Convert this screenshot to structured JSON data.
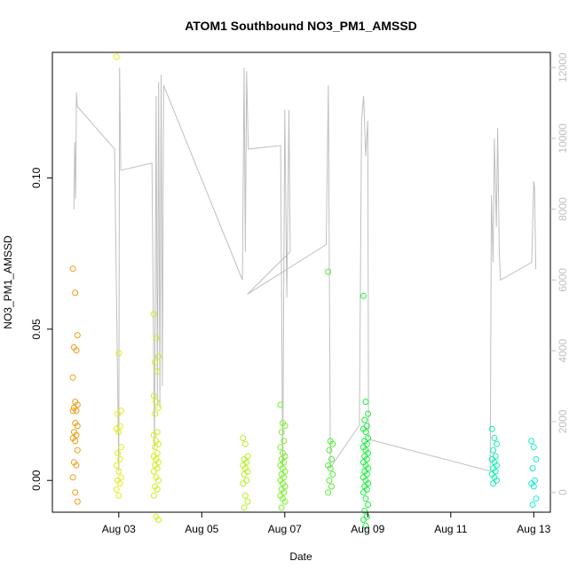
{
  "chart_data": {
    "type": "scatter",
    "title": "ATOM1 Southbound NO3_PM1_AMSSD",
    "xlabel": "Date",
    "ylabel": "NO3_PM1_AMSSD",
    "x_ticks": [
      "Aug 03",
      "Aug 05",
      "Aug 07",
      "Aug 09",
      "Aug 11",
      "Aug 13"
    ],
    "x_tick_days": [
      3,
      5,
      7,
      9,
      11,
      13
    ],
    "xlim": [
      1.4,
      13.4
    ],
    "y_ticks": [
      "0.00",
      "0.05",
      "0.10"
    ],
    "y_tick_values": [
      0.0,
      0.05,
      0.1
    ],
    "ylim": [
      -0.0105,
      0.1415
    ],
    "y2_ticks": [
      "0",
      "2000",
      "4000",
      "6000",
      "8000",
      "10000",
      "12000"
    ],
    "y2_tick_values": [
      0,
      2000,
      4000,
      6000,
      8000,
      10000,
      12000
    ],
    "y2lim": [
      -560,
      12430
    ],
    "series": [
      {
        "name": "NO3_PM1_AMSSD (points)",
        "groups": [
          {
            "day": 1.95,
            "color": "#F39C12",
            "values": [
              0.07,
              0.062,
              0.048,
              0.044,
              0.043,
              0.034,
              0.026,
              0.025,
              0.024,
              0.023,
              0.023,
              0.019,
              0.018,
              0.016,
              0.015,
              0.014,
              0.013,
              0.01,
              0.006,
              0.005,
              0.001,
              -0.004,
              -0.007
            ]
          },
          {
            "day": 3.0,
            "color": "#E2EC1A",
            "values": [
              0.14,
              0.042,
              0.023,
              0.022,
              0.018,
              0.017,
              0.016,
              0.011,
              0.009,
              0.007,
              0.005,
              0.003,
              0.001,
              0.0,
              -0.001,
              -0.003,
              -0.005
            ]
          },
          {
            "day": 3.9,
            "color": "#D2EE1C",
            "values": [
              0.055,
              0.047,
              0.041,
              0.039,
              0.036,
              0.028,
              0.026,
              0.024,
              0.022,
              0.016,
              0.015,
              0.013,
              0.012,
              0.011,
              0.009,
              0.008,
              0.007,
              0.006,
              0.005,
              0.004,
              0.003,
              0.001,
              0.0,
              -0.002,
              -0.003,
              -0.005,
              -0.012,
              -0.013
            ]
          },
          {
            "day": 6.05,
            "color": "#B8EE26",
            "values": [
              0.014,
              0.012,
              0.008,
              0.007,
              0.006,
              0.005,
              0.004,
              0.003,
              0.002,
              0.0,
              -0.001,
              -0.005,
              -0.007,
              -0.009
            ]
          },
          {
            "day": 6.95,
            "color": "#7CEE30",
            "values": [
              0.025,
              0.019,
              0.018,
              0.016,
              0.013,
              0.011,
              0.009,
              0.008,
              0.007,
              0.006,
              0.005,
              0.004,
              0.003,
              0.002,
              0.001,
              0.0,
              -0.001,
              -0.002,
              -0.003,
              -0.004,
              -0.005,
              -0.006,
              -0.007,
              -0.009
            ]
          },
          {
            "day": 8.1,
            "color": "#50EE36",
            "values": [
              0.069,
              0.013,
              0.012,
              0.01,
              0.007,
              0.005,
              0.004,
              0.002,
              0.0,
              -0.002,
              -0.004
            ]
          },
          {
            "day": 8.95,
            "color": "#1CEE3E",
            "values": [
              0.061,
              0.026,
              0.022,
              0.02,
              0.018,
              0.017,
              0.016,
              0.014,
              0.013,
              0.012,
              0.011,
              0.01,
              0.009,
              0.008,
              0.007,
              0.006,
              0.005,
              0.004,
              0.003,
              0.002,
              0.001,
              0.0,
              -0.001,
              -0.002,
              -0.003,
              -0.004,
              -0.006,
              -0.008,
              -0.01,
              -0.012,
              -0.013,
              -0.015
            ]
          },
          {
            "day": 12.05,
            "color": "#14EEB4",
            "values": [
              0.017,
              0.014,
              0.012,
              0.01,
              0.008,
              0.007,
              0.006,
              0.005,
              0.004,
              0.003,
              0.002,
              0.001,
              0.0,
              -0.001
            ]
          },
          {
            "day": 13.0,
            "color": "#14EECD",
            "values": [
              0.013,
              0.011,
              0.007,
              0.004,
              0.0,
              -0.001,
              -0.002,
              -0.006,
              -0.008
            ]
          }
        ]
      },
      {
        "name": "secondary (gray line, right axis)",
        "color": "#bfbfbf",
        "points": [
          [
            1.92,
            8000
          ],
          [
            1.94,
            9900
          ],
          [
            1.96,
            8300
          ],
          [
            1.98,
            11300
          ],
          [
            2.0,
            10900
          ],
          [
            2.9,
            9700
          ],
          [
            3.0,
            600
          ],
          [
            3.02,
            12000
          ],
          [
            3.05,
            9100
          ],
          [
            3.8,
            9300
          ],
          [
            3.86,
            1200
          ],
          [
            3.9,
            11200
          ],
          [
            3.93,
            2500
          ],
          [
            3.96,
            11600
          ],
          [
            3.99,
            2400
          ],
          [
            4.02,
            11800
          ],
          [
            4.05,
            3000
          ],
          [
            4.08,
            11500
          ],
          [
            5.98,
            6000
          ],
          [
            6.02,
            12000
          ],
          [
            6.05,
            6800
          ],
          [
            6.08,
            11900
          ],
          [
            6.12,
            9700
          ],
          [
            6.9,
            9800
          ],
          [
            6.95,
            700
          ],
          [
            7.0,
            10800
          ],
          [
            7.05,
            5500
          ],
          [
            7.1,
            10800
          ],
          [
            7.13,
            6800
          ],
          [
            6.1,
            5600
          ],
          [
            8.0,
            7000
          ],
          [
            8.05,
            11500
          ],
          [
            8.1,
            700
          ],
          [
            8.8,
            1900
          ],
          [
            8.85,
            10500
          ],
          [
            8.9,
            11200
          ],
          [
            8.95,
            9500
          ],
          [
            9.0,
            10500
          ],
          [
            9.02,
            1500
          ],
          [
            11.95,
            600
          ],
          [
            11.98,
            8400
          ],
          [
            12.02,
            6500
          ],
          [
            12.05,
            10000
          ],
          [
            12.1,
            7500
          ],
          [
            12.13,
            10300
          ],
          [
            12.17,
            6700
          ],
          [
            12.2,
            6000
          ],
          [
            12.95,
            6500
          ],
          [
            13.0,
            8800
          ],
          [
            13.02,
            8600
          ],
          [
            13.05,
            6300
          ]
        ]
      }
    ]
  }
}
